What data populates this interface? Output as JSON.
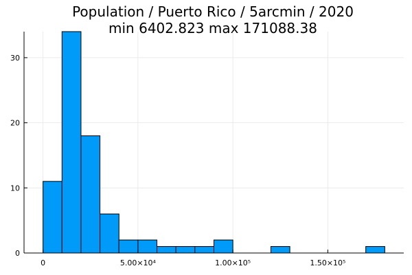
{
  "chart_data": {
    "type": "bar",
    "title_line1": "Population / Puerto Rico / 5arcmin / 2020",
    "title_line2": "min 6402.823  max 171088.38",
    "xlabel": "",
    "ylabel": "",
    "bin_width": 10000,
    "bins": [
      {
        "start": 0,
        "end": 10000,
        "count": 11
      },
      {
        "start": 10000,
        "end": 20000,
        "count": 34
      },
      {
        "start": 20000,
        "end": 30000,
        "count": 18
      },
      {
        "start": 30000,
        "end": 40000,
        "count": 6
      },
      {
        "start": 40000,
        "end": 50000,
        "count": 2
      },
      {
        "start": 50000,
        "end": 60000,
        "count": 2
      },
      {
        "start": 60000,
        "end": 70000,
        "count": 1
      },
      {
        "start": 70000,
        "end": 80000,
        "count": 1
      },
      {
        "start": 80000,
        "end": 90000,
        "count": 1
      },
      {
        "start": 90000,
        "end": 100000,
        "count": 2
      },
      {
        "start": 120000,
        "end": 130000,
        "count": 1
      },
      {
        "start": 170000,
        "end": 180000,
        "count": 1
      }
    ],
    "xlim": [
      -10000,
      190000
    ],
    "ylim": [
      0,
      34
    ],
    "x_ticks": [
      {
        "value": 0,
        "label": "0"
      },
      {
        "value": 50000,
        "label": "5.00×10⁴"
      },
      {
        "value": 100000,
        "label": "1.00×10⁵"
      },
      {
        "value": 150000,
        "label": "1.50×10⁵"
      }
    ],
    "y_ticks": [
      {
        "value": 0,
        "label": "0"
      },
      {
        "value": 10,
        "label": "10"
      },
      {
        "value": 20,
        "label": "20"
      },
      {
        "value": 30,
        "label": "30"
      }
    ],
    "grid": true,
    "legend": "none",
    "bar_color": "#009af9",
    "axis_color": "#000000",
    "grid_color": "#e6e6e6"
  }
}
